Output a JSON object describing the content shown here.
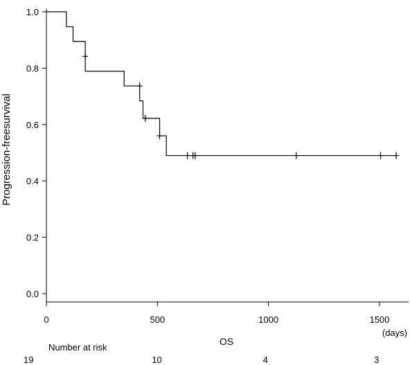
{
  "chart_data": {
    "type": "line",
    "chart_subtype": "kaplan-meier",
    "ylabel": "Progression-freesurvival",
    "xlabel": "OS",
    "x_unit": "(days)",
    "xlim": [
      0,
      1600
    ],
    "ylim": [
      0,
      1.0
    ],
    "x_ticks": [
      0,
      500,
      1000,
      1500
    ],
    "x_tick_labels": [
      "0",
      "500",
      "1000",
      "1500"
    ],
    "y_ticks": [
      0.0,
      0.2,
      0.4,
      0.6,
      0.8,
      1.0
    ],
    "y_tick_labels": [
      "0.0",
      "0.2",
      "0.4",
      "0.6",
      "0.8",
      "1.0"
    ],
    "grid": false,
    "line_color": "#000000",
    "series": [
      {
        "step_x": [
          0,
          90,
          120,
          175,
          350,
          420,
          435,
          510,
          540,
          1580
        ],
        "step_y": [
          1.0,
          0.947,
          0.895,
          0.789,
          0.737,
          0.684,
          0.622,
          0.56,
          0.49,
          0.49
        ],
        "censored_x": [
          175,
          420,
          445,
          510,
          635,
          660,
          670,
          1125,
          1505,
          1575
        ],
        "censored_y": [
          0.842,
          0.737,
          0.622,
          0.56,
          0.49,
          0.49,
          0.49,
          0.49,
          0.49,
          0.49
        ]
      }
    ],
    "risk_table": {
      "title": "Number at risk",
      "times": [
        0,
        500,
        1000,
        1500
      ],
      "counts": [
        "19",
        "10",
        "4",
        "3"
      ]
    }
  }
}
